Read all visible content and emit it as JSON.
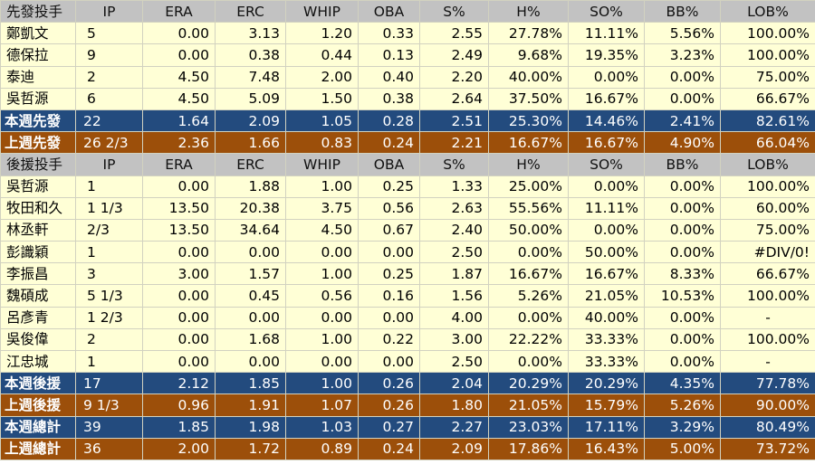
{
  "table": {
    "colors": {
      "header_bg": "#c2c2c2",
      "row_bg": "#ffffd6",
      "this_week_bg": "#234b7e",
      "last_week_bg": "#9c4f0a"
    },
    "rows": [
      {
        "type": "hdr",
        "cells": [
          "先發投手",
          "IP",
          "ERA",
          "ERC",
          "WHIP",
          "OBA",
          "S%",
          "H%",
          "SO%",
          "BB%",
          "LOB%"
        ]
      },
      {
        "type": "row",
        "cells": [
          "鄭凱文",
          "5",
          "0.00",
          "3.13",
          "1.20",
          "0.33",
          "2.55",
          "27.78%",
          "11.11%",
          "5.56%",
          "100.00%"
        ]
      },
      {
        "type": "row",
        "cells": [
          "德保拉",
          "9",
          "0.00",
          "0.38",
          "0.44",
          "0.13",
          "2.49",
          "9.68%",
          "19.35%",
          "3.23%",
          "100.00%"
        ]
      },
      {
        "type": "row",
        "cells": [
          "泰迪",
          "2",
          "4.50",
          "7.48",
          "2.00",
          "0.40",
          "2.20",
          "40.00%",
          "0.00%",
          "0.00%",
          "75.00%"
        ]
      },
      {
        "type": "row",
        "cells": [
          "吳哲源",
          "6",
          "4.50",
          "5.09",
          "1.50",
          "0.38",
          "2.64",
          "37.50%",
          "16.67%",
          "0.00%",
          "66.67%"
        ]
      },
      {
        "type": "blue",
        "cells": [
          "本週先發",
          "22",
          "1.64",
          "2.09",
          "1.05",
          "0.28",
          "2.51",
          "25.30%",
          "14.46%",
          "2.41%",
          "82.61%"
        ]
      },
      {
        "type": "orange",
        "cells": [
          "上週先發",
          "26 2/3",
          "2.36",
          "1.66",
          "0.83",
          "0.24",
          "2.21",
          "16.67%",
          "16.67%",
          "4.90%",
          "66.04%"
        ]
      },
      {
        "type": "hdr",
        "cells": [
          "後援投手",
          "IP",
          "ERA",
          "ERC",
          "WHIP",
          "OBA",
          "S%",
          "H%",
          "SO%",
          "BB%",
          "LOB%"
        ]
      },
      {
        "type": "row",
        "cells": [
          "吳哲源",
          "1",
          "0.00",
          "1.88",
          "1.00",
          "0.25",
          "1.33",
          "25.00%",
          "0.00%",
          "0.00%",
          "100.00%"
        ]
      },
      {
        "type": "row",
        "cells": [
          "牧田和久",
          "1 1/3",
          "13.50",
          "20.38",
          "3.75",
          "0.56",
          "2.63",
          "55.56%",
          "11.11%",
          "0.00%",
          "60.00%"
        ]
      },
      {
        "type": "row",
        "cells": [
          "林丞軒",
          "2/3",
          "13.50",
          "34.64",
          "4.50",
          "0.67",
          "2.40",
          "50.00%",
          "0.00%",
          "0.00%",
          "75.00%"
        ]
      },
      {
        "type": "row",
        "cells": [
          "彭識穎",
          "1",
          "0.00",
          "0.00",
          "0.00",
          "0.00",
          "2.50",
          "0.00%",
          "50.00%",
          "0.00%",
          "#DIV/0!"
        ]
      },
      {
        "type": "row",
        "cells": [
          "李振昌",
          "3",
          "3.00",
          "1.57",
          "1.00",
          "0.25",
          "1.87",
          "16.67%",
          "16.67%",
          "8.33%",
          "66.67%"
        ]
      },
      {
        "type": "row",
        "cells": [
          "魏碩成",
          "5 1/3",
          "0.00",
          "0.45",
          "0.56",
          "0.16",
          "1.56",
          "5.26%",
          "21.05%",
          "10.53%",
          "100.00%"
        ]
      },
      {
        "type": "row",
        "cells": [
          "呂彥青",
          "1 2/3",
          "0.00",
          "0.00",
          "0.00",
          "0.00",
          "4.00",
          "0.00%",
          "40.00%",
          "0.00%",
          "-"
        ]
      },
      {
        "type": "row",
        "cells": [
          "吳俊偉",
          "2",
          "0.00",
          "1.68",
          "1.00",
          "0.22",
          "3.00",
          "22.22%",
          "33.33%",
          "0.00%",
          "100.00%"
        ]
      },
      {
        "type": "row",
        "cells": [
          "江忠城",
          "1",
          "0.00",
          "0.00",
          "0.00",
          "0.00",
          "2.50",
          "0.00%",
          "33.33%",
          "0.00%",
          "-"
        ]
      },
      {
        "type": "blue",
        "cells": [
          "本週後援",
          "17",
          "2.12",
          "1.85",
          "1.00",
          "0.26",
          "2.04",
          "20.29%",
          "20.29%",
          "4.35%",
          "77.78%"
        ]
      },
      {
        "type": "orange",
        "cells": [
          "上週後援",
          "9 1/3",
          "0.96",
          "1.91",
          "1.07",
          "0.26",
          "1.80",
          "21.05%",
          "15.79%",
          "5.26%",
          "90.00%"
        ]
      },
      {
        "type": "blue",
        "cells": [
          "本週總計",
          "39",
          "1.85",
          "1.98",
          "1.03",
          "0.27",
          "2.27",
          "23.03%",
          "17.11%",
          "3.29%",
          "80.49%"
        ]
      },
      {
        "type": "orange",
        "cells": [
          "上週總計",
          "36",
          "2.00",
          "1.72",
          "0.89",
          "0.24",
          "2.09",
          "17.86%",
          "16.43%",
          "5.00%",
          "73.72%"
        ]
      }
    ]
  }
}
